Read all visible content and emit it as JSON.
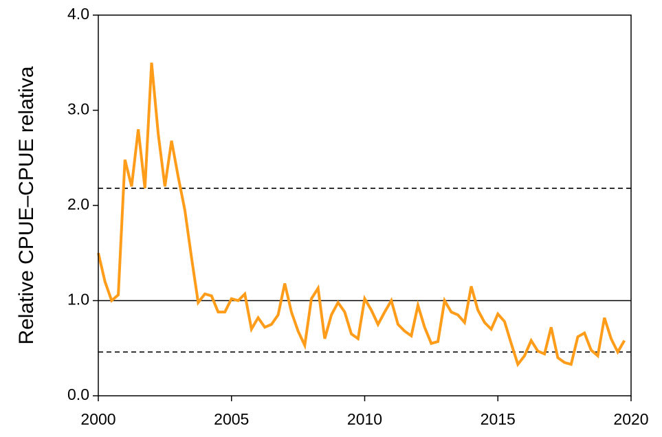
{
  "chart_data": {
    "type": "line",
    "ylabel": "Relative CPUE–CPUE relativa",
    "xlim": [
      2000,
      2020
    ],
    "ylim": [
      0,
      4
    ],
    "xticks": [
      2000,
      2005,
      2010,
      2015,
      2020
    ],
    "yticks": [
      {
        "value": 0,
        "label": "0.0"
      },
      {
        "value": 1,
        "label": "1.0"
      },
      {
        "value": 2,
        "label": "2.0"
      },
      {
        "value": 3,
        "label": "3.0"
      },
      {
        "value": 4,
        "label": "4.0"
      }
    ],
    "hlines": [
      {
        "value": 2.18,
        "style": "dashed",
        "color": "#000000"
      },
      {
        "value": 1.0,
        "style": "solid",
        "color": "#000000"
      },
      {
        "value": 0.46,
        "style": "dashed",
        "color": "#000000"
      }
    ],
    "x": [
      2000,
      2000.25,
      2000.5,
      2000.75,
      2001,
      2001.25,
      2001.5,
      2001.75,
      2002,
      2002.25,
      2002.5,
      2002.75,
      2003,
      2003.25,
      2003.5,
      2003.75,
      2004,
      2004.25,
      2004.5,
      2004.75,
      2005,
      2005.25,
      2005.5,
      2005.75,
      2006,
      2006.25,
      2006.5,
      2006.75,
      2007,
      2007.25,
      2007.5,
      2007.75,
      2008,
      2008.25,
      2008.5,
      2008.75,
      2009,
      2009.25,
      2009.5,
      2009.75,
      2010,
      2010.25,
      2010.5,
      2010.75,
      2011,
      2011.25,
      2011.5,
      2011.75,
      2012,
      2012.25,
      2012.5,
      2012.75,
      2013,
      2013.25,
      2013.5,
      2013.75,
      2014,
      2014.25,
      2014.5,
      2014.75,
      2015,
      2015.25,
      2015.5,
      2015.75,
      2016,
      2016.25,
      2016.5,
      2016.75,
      2017,
      2017.25,
      2017.5,
      2017.75,
      2018,
      2018.25,
      2018.5,
      2018.75,
      2019,
      2019.25,
      2019.5,
      2019.75
    ],
    "series": [
      {
        "color": "#ff9c1a",
        "values": [
          1.5,
          1.2,
          1.0,
          1.06,
          2.48,
          2.2,
          2.8,
          2.18,
          3.5,
          2.75,
          2.2,
          2.68,
          2.3,
          1.95,
          1.45,
          0.98,
          1.07,
          1.05,
          0.88,
          0.88,
          1.02,
          1.0,
          1.07,
          0.7,
          0.82,
          0.72,
          0.75,
          0.85,
          1.18,
          0.88,
          0.68,
          0.53,
          1.02,
          1.13,
          0.6,
          0.85,
          0.98,
          0.88,
          0.65,
          0.6,
          1.02,
          0.9,
          0.75,
          0.88,
          1.0,
          0.75,
          0.68,
          0.63,
          0.95,
          0.72,
          0.55,
          0.57,
          1.0,
          0.88,
          0.85,
          0.77,
          1.15,
          0.9,
          0.77,
          0.7,
          0.86,
          0.78,
          0.55,
          0.33,
          0.42,
          0.58,
          0.47,
          0.44,
          0.72,
          0.4,
          0.35,
          0.33,
          0.62,
          0.66,
          0.48,
          0.42,
          0.82,
          0.6,
          0.46,
          0.58
        ]
      }
    ]
  }
}
